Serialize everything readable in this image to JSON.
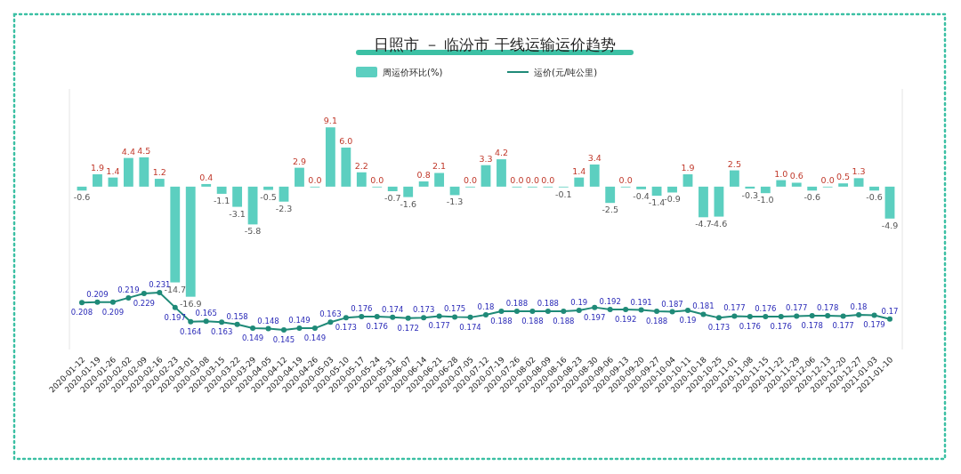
{
  "chart_data": {
    "type": "bar",
    "title": "日照市 － 临汾市 干线运输运价趋势",
    "categories": [
      "2020-01-12",
      "2020-01-19",
      "2020-01-26",
      "2020-02-02",
      "2020-02-09",
      "2020-02-16",
      "2020-02-23",
      "2020-03-01",
      "2020-03-08",
      "2020-03-15",
      "2020-03-22",
      "2020-03-29",
      "2020-04-05",
      "2020-04-12",
      "2020-04-19",
      "2020-04-26",
      "2020-05-03",
      "2020-05-10",
      "2020-05-17",
      "2020-05-24",
      "2020-05-31",
      "2020-06-07",
      "2020-06-14",
      "2020-06-21",
      "2020-06-28",
      "2020-07-05",
      "2020-07-12",
      "2020-07-19",
      "2020-07-26",
      "2020-08-02",
      "2020-08-09",
      "2020-08-16",
      "2020-08-23",
      "2020-08-30",
      "2020-09-06",
      "2020-09-13",
      "2020-09-20",
      "2020-09-27",
      "2020-10-04",
      "2020-10-11",
      "2020-10-18",
      "2020-10-25",
      "2020-11-01",
      "2020-11-08",
      "2020-11-15",
      "2020-11-22",
      "2020-11-29",
      "2020-12-06",
      "2020-12-13",
      "2020-12-20",
      "2020-12-27",
      "2021-01-03",
      "2021-01-10"
    ],
    "series": [
      {
        "name": "周运价环比(%)",
        "color": "#5ccfc0",
        "values": [
          -0.6,
          1.9,
          1.4,
          4.4,
          4.5,
          1.2,
          -14.7,
          -16.9,
          0.4,
          -1.1,
          -3.1,
          -5.8,
          -0.5,
          -2.3,
          2.9,
          0.0,
          9.1,
          6.0,
          2.2,
          0.0,
          -0.7,
          -1.6,
          0.8,
          2.1,
          -1.3,
          0.0,
          3.3,
          4.2,
          0.0,
          0.0,
          0.0,
          -0.1,
          1.4,
          3.4,
          -2.5,
          0.0,
          -0.4,
          -1.4,
          -0.9,
          1.9,
          -4.7,
          -4.6,
          2.5,
          -0.3,
          -1.0,
          1.0,
          0.6,
          -0.6,
          0.0,
          0.5,
          1.3,
          -0.6,
          -4.9
        ],
        "value_labels": [
          "-0.6",
          "1.9",
          "1.4",
          "4.4",
          "4.5",
          "1.2",
          "-14.7",
          "-16.9",
          "0.4",
          "-1.1",
          "-3.1",
          "-5.8",
          "-0.5",
          "-2.3",
          "2.9",
          "0.0",
          "9.1",
          "6.0",
          "2.2",
          "0.0",
          "-0.7",
          "-1.6",
          "0.8",
          "2.1",
          "-1.3",
          "0.0",
          "3.3",
          "4.2",
          "0.0",
          "0.0",
          "0.0",
          "-0.1",
          "1.4",
          "3.4",
          "-2.5",
          "0.0",
          "-0.4",
          "-1.4",
          "-0.9",
          "1.9",
          "-4.7",
          "-4.6",
          "2.5",
          "-0.3",
          "-1.0",
          "1.0",
          "0.6",
          "-0.6",
          "0.0",
          "0.5",
          "1.3",
          "-0.6",
          "-4.9"
        ]
      },
      {
        "name": "运价(元/吨公里)",
        "type": "line",
        "axis": "y2",
        "color": "#1f8a78",
        "values": [
          0.208,
          0.209,
          0.209,
          0.219,
          0.229,
          0.231,
          0.197,
          0.164,
          0.165,
          0.163,
          0.158,
          0.149,
          0.148,
          0.145,
          0.149,
          0.149,
          0.163,
          0.173,
          0.176,
          0.176,
          0.174,
          0.172,
          0.173,
          0.177,
          0.175,
          0.174,
          0.18,
          0.188,
          0.188,
          0.188,
          0.188,
          0.188,
          0.19,
          0.197,
          0.192,
          0.192,
          0.191,
          0.188,
          0.187,
          0.19,
          0.181,
          0.173,
          0.177,
          0.176,
          0.176,
          0.176,
          0.177,
          0.178,
          0.178,
          0.177,
          0.18,
          0.179,
          0.17
        ],
        "value_labels": [
          "0.208",
          "0.209",
          "0.209",
          "0.219",
          "0.229",
          "0.231",
          "0.197",
          "0.164",
          "0.165",
          "0.163",
          "0.158",
          "0.149",
          "0.148",
          "0.145",
          "0.149",
          "0.149",
          "0.163",
          "0.173",
          "0.176",
          "0.176",
          "0.174",
          "0.172",
          "0.173",
          "0.177",
          "0.175",
          "0.174",
          "0.18",
          "0.188",
          "0.188",
          "0.188",
          "0.188",
          "0.188",
          "0.19",
          "0.197",
          "0.192",
          "0.192",
          "0.191",
          "0.188",
          "0.187",
          "0.19",
          "0.181",
          "0.173",
          "0.177",
          "0.176",
          "0.176",
          "0.176",
          "0.177",
          "0.178",
          "0.178",
          "0.177",
          "0.18",
          "0.179",
          "0.17"
        ]
      }
    ],
    "ylim": [
      -25,
      15
    ],
    "y2lim": [
      0.1,
      0.7
    ],
    "tick_labels": "x",
    "legend": "top",
    "marker": "circle"
  }
}
